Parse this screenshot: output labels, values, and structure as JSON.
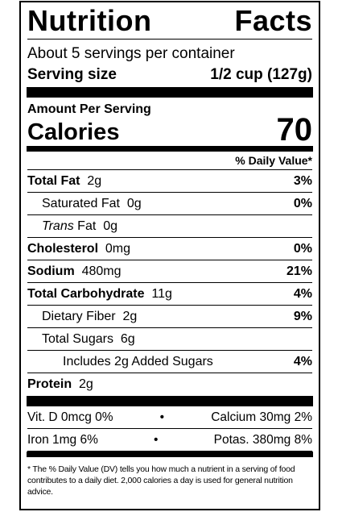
{
  "title_left": "Nutrition",
  "title_right": "Facts",
  "servings_per_container": "About 5 servings per container",
  "serving_size_label": "Serving size",
  "serving_size_value": "1/2 cup (127g)",
  "amount_per_serving": "Amount Per Serving",
  "calories_label": "Calories",
  "calories_value": "70",
  "dv_header": "% Daily Value*",
  "nutrients": {
    "total_fat": {
      "label": "Total Fat",
      "amount": "2g",
      "dv": "3%"
    },
    "saturated_fat": {
      "label": "Saturated Fat",
      "amount": "0g",
      "dv": "0%"
    },
    "trans_fat": {
      "label_italic": "Trans",
      "label": "Fat",
      "amount": "0g"
    },
    "cholesterol": {
      "label": "Cholesterol",
      "amount": "0mg",
      "dv": "0%"
    },
    "sodium": {
      "label": "Sodium",
      "amount": "480mg",
      "dv": "21%"
    },
    "total_carbohydrate": {
      "label": "Total Carbohydrate",
      "amount": "11g",
      "dv": "4%"
    },
    "dietary_fiber": {
      "label": "Dietary Fiber",
      "amount": "2g",
      "dv": "9%"
    },
    "total_sugars": {
      "label": "Total Sugars",
      "amount": "6g"
    },
    "added_sugars": {
      "label": "Includes 2g Added Sugars",
      "dv": "4%"
    },
    "protein": {
      "label": "Protein",
      "amount": "2g"
    }
  },
  "vitamins": {
    "row1_left": "Vit. D 0mcg 0%",
    "row1_right": "Calcium 30mg 2%",
    "row2_left": "Iron 1mg 6%",
    "row2_right": "Potas. 380mg 8%",
    "separator": "•"
  },
  "footnote": "* The % Daily Value (DV) tells you how much a nutrient in a serving of food contributes to a daily diet. 2,000 calories a day is used for general nutrition advice."
}
